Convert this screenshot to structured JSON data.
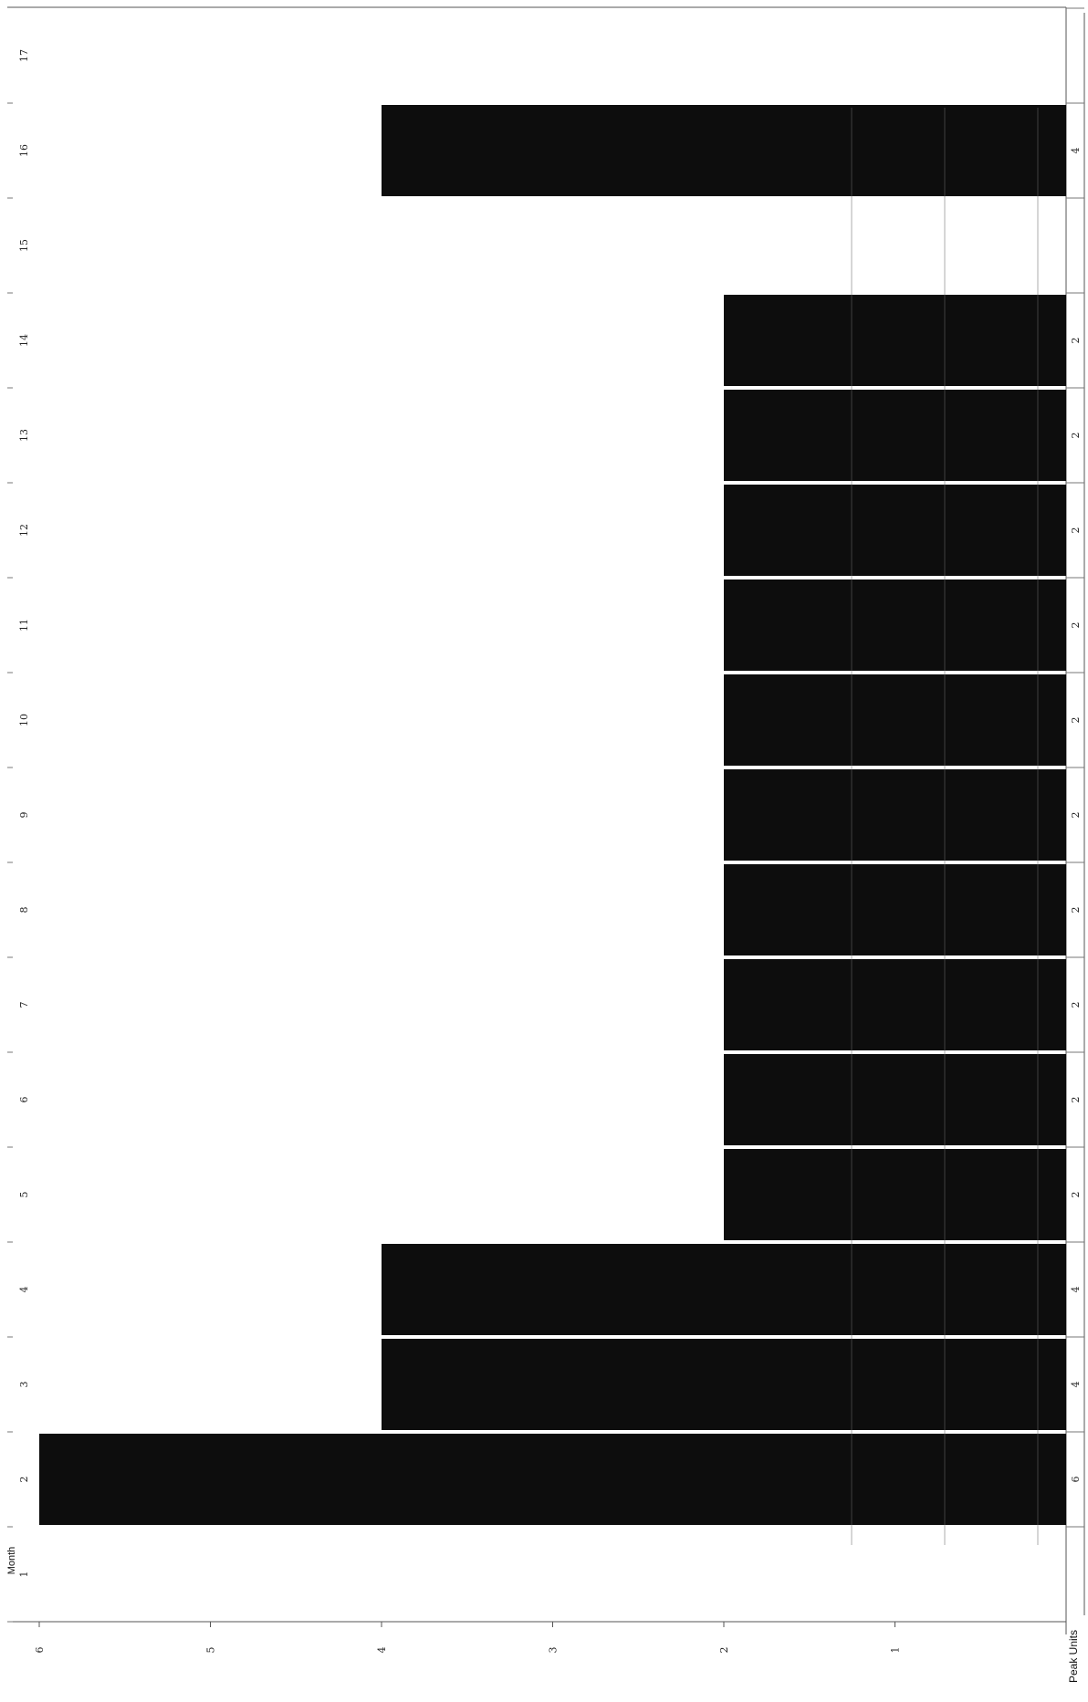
{
  "chart_data": {
    "type": "bar",
    "orientation": "rotated-90",
    "xlabel": "Month",
    "ylabel": "Peak Units",
    "categories": [
      "1",
      "2",
      "3",
      "4",
      "5",
      "6",
      "7",
      "8",
      "9",
      "10",
      "11",
      "12",
      "13",
      "14",
      "15",
      "16",
      "17"
    ],
    "values": [
      0,
      6,
      4,
      4,
      2,
      2,
      2,
      2,
      2,
      2,
      2,
      2,
      2,
      2,
      0,
      4,
      0
    ],
    "value_labels": [
      "",
      "6",
      "4",
      "4",
      "2",
      "2",
      "2",
      "2",
      "2",
      "2",
      "2",
      "2",
      "2",
      "2",
      "",
      "4",
      ""
    ],
    "ylim": [
      0,
      6
    ],
    "yticks": [
      "1",
      "2",
      "3",
      "4",
      "5",
      "6"
    ],
    "grid": false,
    "colors": {
      "bar": "#0d0d0d",
      "axis": "#555555",
      "background": "#ffffff"
    }
  }
}
